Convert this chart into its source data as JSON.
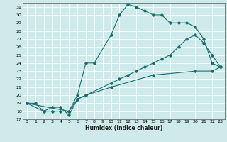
{
  "title": "",
  "xlabel": "Humidex (Indice chaleur)",
  "ylabel": "",
  "bg_color": "#ceeaea",
  "grid_color": "#ffffff",
  "line_color": "#1a6e6e",
  "ylim": [
    17,
    31.5
  ],
  "xlim": [
    -0.5,
    23.5
  ],
  "yticks": [
    17,
    18,
    19,
    20,
    21,
    22,
    23,
    24,
    25,
    26,
    27,
    28,
    29,
    30,
    31
  ],
  "xticks": [
    0,
    1,
    2,
    3,
    4,
    5,
    6,
    7,
    8,
    9,
    10,
    11,
    12,
    13,
    14,
    15,
    16,
    17,
    18,
    19,
    20,
    21,
    22,
    23
  ],
  "line1_x": [
    0,
    1,
    2,
    3,
    4,
    5,
    6,
    7,
    8,
    10,
    11,
    12,
    13,
    14,
    15,
    16,
    17,
    18,
    19,
    20,
    21,
    22,
    23
  ],
  "line1_y": [
    19,
    19,
    18,
    18,
    18,
    18,
    20,
    24,
    24,
    27.5,
    30,
    31.3,
    31,
    30.5,
    30,
    30,
    29,
    29,
    29,
    28.5,
    27,
    24,
    23.5
  ],
  "line2_x": [
    0,
    2,
    3,
    4,
    5,
    6,
    7,
    10,
    11,
    12,
    13,
    14,
    15,
    16,
    17,
    18,
    19,
    20,
    21,
    22,
    23
  ],
  "line2_y": [
    19,
    18,
    18.5,
    18.5,
    17.5,
    19.5,
    20,
    21.5,
    22,
    22.5,
    23,
    23.5,
    24,
    24.5,
    25,
    26,
    27,
    27.5,
    26.5,
    25,
    23.5
  ],
  "line3_x": [
    0,
    5,
    6,
    7,
    10,
    15,
    20,
    22,
    23
  ],
  "line3_y": [
    19,
    18,
    19.5,
    20,
    21,
    22.5,
    23,
    23,
    23.5
  ]
}
